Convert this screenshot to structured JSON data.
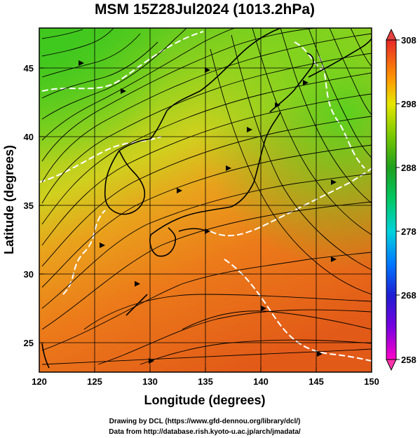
{
  "title": "MSM 15Z28Jul2024 (1013.2hPa)",
  "x_axis": {
    "label": "Longitude (degrees)",
    "range": [
      120,
      150
    ],
    "ticks": [
      120,
      125,
      130,
      135,
      140,
      145,
      150
    ]
  },
  "y_axis": {
    "label": "Latitude  (degrees)",
    "range": [
      22.5,
      47.6
    ],
    "ticks": [
      25,
      30,
      35,
      40,
      45
    ]
  },
  "colorbar": {
    "range": [
      258,
      308
    ],
    "labels": [
      308,
      298,
      288,
      278,
      268,
      258
    ],
    "colors": [
      "#ff00c8",
      "#7a00e0",
      "#1e1ed2",
      "#0078ff",
      "#00d2dc",
      "#00c864",
      "#1ea01e",
      "#78c800",
      "#e6e600",
      "#ff9600",
      "#ff3c1e",
      "#e62828"
    ],
    "end_arrow_colors": [
      "#e84040",
      "#ff33aa"
    ]
  },
  "field": {
    "cold_color": "#4cc81e",
    "mid_color": "#b8d62a",
    "warm_color": "#ec7a1a",
    "hot_color": "#e25a18"
  },
  "map": {
    "coastline_color": "#000000",
    "contour_color": "#ffffff",
    "grid_color": "#000000",
    "grid_lon": [
      125,
      130,
      135,
      140,
      145
    ],
    "grid_lat": [
      25,
      30,
      35,
      40,
      45
    ]
  },
  "credits": {
    "line1": "Drawing by DCL (https://www.gfd-dennou.org/library/dcl/)",
    "line2": "Data from http://database.rish.kyoto-u.ac.jp/arch/jmadata/"
  }
}
